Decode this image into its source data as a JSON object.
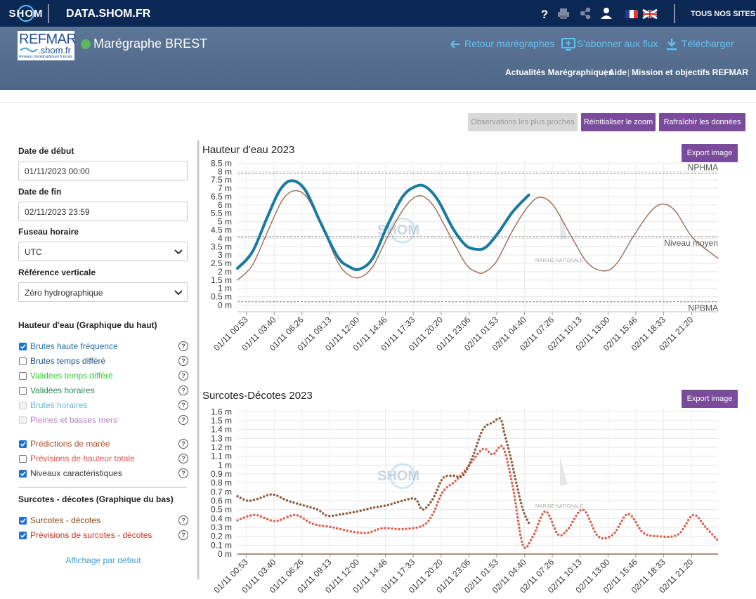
{
  "header": {
    "logo": "SHOM",
    "site": "DATA.SHOM.FR",
    "help": "?",
    "all_sites": "TOUS NOS SITES"
  },
  "subheader": {
    "refmar_logo": "REFMAR",
    "refmar_domain": ".shom.fr",
    "refmar_tagline": "Réseaux marégraphiques français",
    "station_title": "Marégraphe BREST",
    "status_color": "#5cb85c",
    "links": [
      "Retour marégraphes",
      "S'abonner aux flux",
      "Télécharger"
    ],
    "nav": [
      "Actualités Marégraphiques",
      "Aide",
      "Mission et objectifs REFMAR"
    ],
    "nav_separator": "|"
  },
  "toolbar": {
    "buttons": [
      {
        "label": "Observations les plus proches",
        "enabled": false
      },
      {
        "label": "Réinitialiser le zoom",
        "enabled": true
      },
      {
        "label": "Rafraîchir les données",
        "enabled": true
      }
    ]
  },
  "sidebar": {
    "fields": [
      {
        "label": "Date de début",
        "value": "01/11/2023 00:00",
        "kind": "input"
      },
      {
        "label": "Date de fin",
        "value": "02/11/2023 23:59",
        "kind": "input"
      },
      {
        "label": "Fuseau horaire",
        "value": "UTC",
        "kind": "select"
      },
      {
        "label": "Référence verticale",
        "value": "Zéro hydrographique",
        "kind": "select"
      }
    ],
    "help_icon": "?",
    "groups": [
      {
        "title": "Hauteur d'eau (Graphique du haut)",
        "item_sets": [
          [
            {
              "label": "Brutes haute fréquence",
              "checked": true,
              "enabled": true,
              "color": "#1f6fa8"
            },
            {
              "label": "Brutes temps différé",
              "checked": false,
              "enabled": true,
              "color": "#1d4e80"
            },
            {
              "label": "Validées temps différé",
              "checked": false,
              "enabled": true,
              "color": "#33cc33"
            },
            {
              "label": "Validées horaires",
              "checked": false,
              "enabled": true,
              "color": "#2e8b57"
            },
            {
              "label": "Brutes horaires",
              "checked": false,
              "enabled": false,
              "color": "#3a9fbf"
            },
            {
              "label": "Pleines et basses mers",
              "checked": false,
              "enabled": false,
              "color": "#9b59b6"
            }
          ],
          [
            {
              "label": "Prédictions de marée",
              "checked": true,
              "enabled": true,
              "color": "#a0522d"
            },
            {
              "label": "Prévisions de hauteur totale",
              "checked": false,
              "enabled": true,
              "color": "#d9534f"
            },
            {
              "label": "Niveaux caractéristiques",
              "checked": true,
              "enabled": true,
              "color": "#333333"
            }
          ]
        ]
      },
      {
        "title": "Surcotes - décotes (Graphique du bas)",
        "item_sets": [
          [
            {
              "label": "Surcotes - décotes",
              "checked": true,
              "enabled": true,
              "color": "#8b4513"
            },
            {
              "label": "Prévisions de surcotes - décotes",
              "checked": true,
              "enabled": true,
              "color": "#c0392b"
            }
          ]
        ]
      }
    ],
    "default_link": "Affichage par défaut"
  },
  "watermark": {
    "logo": "SHOM",
    "navy": "MARINE NATIONALE"
  },
  "chart_data": [
    {
      "type": "line",
      "title": "Hauteur d'eau 2023",
      "export_button": "Export image",
      "grid": true,
      "xlim": [
        "01/11 00:00",
        "02/11 23:59"
      ],
      "xticks": [
        "01/11 00:53",
        "01/11 03:40",
        "01/11 06:26",
        "01/11 09:13",
        "01/11 12:00",
        "01/11 14:46",
        "01/11 17:33",
        "01/11 20:20",
        "01/11 23:06",
        "02/11 01:53",
        "02/11 04:40",
        "02/11 07:26",
        "02/11 10:13",
        "02/11 13:00",
        "02/11 15:46",
        "02/11 18:33",
        "02/11 21:20"
      ],
      "ylim": [
        -0.4,
        8.6
      ],
      "yticks": [
        {
          "value": 0,
          "label": "0 m"
        },
        {
          "value": 0.5,
          "label": "0.5 m"
        },
        {
          "value": 1,
          "label": "1 m"
        },
        {
          "value": 1.5,
          "label": "1.5 m"
        },
        {
          "value": 2,
          "label": "2 m"
        },
        {
          "value": 2.5,
          "label": "2.5 m"
        },
        {
          "value": 3,
          "label": "3 m"
        },
        {
          "value": 3.5,
          "label": "3.5 m"
        },
        {
          "value": 4,
          "label": "4 m"
        },
        {
          "value": 4.5,
          "label": "4.5 m"
        },
        {
          "value": 5,
          "label": "5 m"
        },
        {
          "value": 5.5,
          "label": "5.5 m"
        },
        {
          "value": 6,
          "label": "6 m"
        },
        {
          "value": 6.5,
          "label": "6.5 m"
        },
        {
          "value": 7,
          "label": "7 m"
        },
        {
          "value": 7.5,
          "label": "7.5 m"
        },
        {
          "value": 8,
          "label": "8 m"
        },
        {
          "value": 8.5,
          "label": "8.5 m"
        }
      ],
      "reference_lines": [
        {
          "label": "NPHMA",
          "value": 7.9
        },
        {
          "label": "Niveau moyen",
          "value": 4.1
        },
        {
          "label": "NPBMA",
          "value": 0.2
        }
      ],
      "series": [
        {
          "color": "#9b6a55",
          "style": "thin",
          "x": [
            "01/11 00:00",
            "01/11 01:30",
            "01/11 03:00",
            "01/11 04:30",
            "01/11 05:45",
            "01/11 07:00",
            "01/11 08:30",
            "01/11 10:00",
            "01/11 11:00",
            "01/11 12:10",
            "01/11 13:30",
            "01/11 15:00",
            "01/11 16:45",
            "01/11 18:10",
            "01/11 19:30",
            "01/11 21:00",
            "01/11 22:45",
            "01/11 23:50",
            "02/11 00:35",
            "02/11 01:50",
            "02/11 03:30",
            "02/11 05:00",
            "02/11 06:10",
            "02/11 07:30",
            "02/11 09:15",
            "02/11 11:00",
            "02/11 12:45",
            "02/11 14:00",
            "02/11 15:30",
            "02/11 17:15",
            "02/11 18:30",
            "02/11 19:45",
            "02/11 21:30",
            "02/11 23:59"
          ],
          "values": [
            1.5,
            2.4,
            4.4,
            6.3,
            6.85,
            6.4,
            4.6,
            2.6,
            1.85,
            1.65,
            2.3,
            4.1,
            5.9,
            6.55,
            6.0,
            4.4,
            2.5,
            2.0,
            1.95,
            2.6,
            4.5,
            5.9,
            6.45,
            6.0,
            4.2,
            2.5,
            2.05,
            2.6,
            4.1,
            5.6,
            6.05,
            5.6,
            4.0,
            2.8
          ]
        },
        {
          "color": "#1a7aa0",
          "style": "thick",
          "x": [
            "01/11 00:00",
            "01/11 01:30",
            "01/11 03:00",
            "01/11 04:15",
            "01/11 05:25",
            "01/11 06:45",
            "01/11 08:15",
            "01/11 10:00",
            "01/11 11:10",
            "01/11 12:10",
            "01/11 13:30",
            "01/11 15:00",
            "01/11 16:30",
            "01/11 17:45",
            "01/11 18:45",
            "01/11 20:00",
            "01/11 21:30",
            "01/11 22:45",
            "01/11 23:45",
            "02/11 00:45",
            "02/11 02:00",
            "02/11 03:30",
            "02/11 05:05"
          ],
          "values": [
            2.2,
            3.2,
            5.3,
            6.9,
            7.45,
            6.9,
            5.0,
            2.9,
            2.3,
            2.15,
            2.8,
            4.8,
            6.5,
            7.1,
            7.1,
            6.3,
            4.6,
            3.6,
            3.35,
            3.45,
            4.3,
            5.6,
            6.6
          ]
        }
      ]
    },
    {
      "type": "dotted",
      "title": "Surcotes-Décotes 2023",
      "export_button": "Export image",
      "grid": true,
      "xlim": [
        "01/11 00:00",
        "02/11 23:59"
      ],
      "xticks": [
        "01/11 00:53",
        "01/11 03:40",
        "01/11 06:26",
        "01/11 09:13",
        "01/11 12:00",
        "01/11 14:46",
        "01/11 17:33",
        "01/11 20:20",
        "01/11 23:06",
        "02/11 01:53",
        "02/11 04:40",
        "02/11 07:26",
        "02/11 10:13",
        "02/11 13:00",
        "02/11 15:46",
        "02/11 18:33",
        "02/11 21:20"
      ],
      "ylim": [
        0,
        1.65
      ],
      "yticks": [
        {
          "value": 0,
          "label": "0 m"
        },
        {
          "value": 0.1,
          "label": "0.1 m"
        },
        {
          "value": 0.2,
          "label": "0.2 m"
        },
        {
          "value": 0.3,
          "label": "0.3 m"
        },
        {
          "value": 0.4,
          "label": "0.4 m"
        },
        {
          "value": 0.5,
          "label": "0.5 m"
        },
        {
          "value": 0.6,
          "label": "0.6 m"
        },
        {
          "value": 0.7,
          "label": "0.7 m"
        },
        {
          "value": 0.8,
          "label": "0.8 m"
        },
        {
          "value": 0.9,
          "label": "0.9 m"
        },
        {
          "value": 1,
          "label": "1 m"
        },
        {
          "value": 1.1,
          "label": "1.1 m"
        },
        {
          "value": 1.2,
          "label": "1.2 m"
        },
        {
          "value": 1.3,
          "label": "1.3 m"
        },
        {
          "value": 1.4,
          "label": "1.4 m"
        },
        {
          "value": 1.5,
          "label": "1.5 m"
        },
        {
          "value": 1.6,
          "label": "1.6 m"
        }
      ],
      "series": [
        {
          "color": "#d9604f",
          "x": [
            "01/11 00:00",
            "01/11 01:45",
            "01/11 03:45",
            "01/11 05:45",
            "01/11 07:30",
            "01/11 09:30",
            "01/11 11:30",
            "01/11 13:00",
            "01/11 14:30",
            "01/11 16:30",
            "01/11 18:30",
            "01/11 19:30",
            "01/11 20:30",
            "01/11 21:45",
            "01/11 23:00",
            "02/11 00:30",
            "02/11 01:30",
            "02/11 02:30",
            "02/11 03:30",
            "02/11 04:30",
            "02/11 05:30",
            "02/11 06:45",
            "02/11 08:00",
            "02/11 09:00",
            "02/11 10:30",
            "02/11 12:00",
            "02/11 13:30",
            "02/11 15:00",
            "02/11 16:30",
            "02/11 18:00",
            "02/11 20:00",
            "02/11 21:30",
            "02/11 22:45",
            "02/11 23:59"
          ],
          "values": [
            0.38,
            0.44,
            0.37,
            0.44,
            0.34,
            0.3,
            0.25,
            0.24,
            0.29,
            0.28,
            0.32,
            0.45,
            0.7,
            0.82,
            0.98,
            1.18,
            1.12,
            1.2,
            0.75,
            0.1,
            0.2,
            0.48,
            0.22,
            0.28,
            0.5,
            0.2,
            0.22,
            0.45,
            0.24,
            0.2,
            0.22,
            0.44,
            0.3,
            0.15
          ]
        },
        {
          "color": "#8b5a3c",
          "x": [
            "01/11 00:00",
            "01/11 01:00",
            "01/11 02:00",
            "01/11 03:30",
            "01/11 05:00",
            "01/11 06:30",
            "01/11 08:00",
            "01/11 09:00",
            "01/11 10:30",
            "01/11 12:00",
            "01/11 13:30",
            "01/11 15:00",
            "01/11 16:30",
            "01/11 17:45",
            "01/11 18:30",
            "01/11 19:30",
            "01/11 20:30",
            "01/11 21:30",
            "01/11 22:30",
            "01/11 23:30",
            "02/11 00:30",
            "02/11 01:30",
            "02/11 02:15",
            "02/11 02:40",
            "02/11 03:15",
            "02/11 03:50",
            "02/11 04:30",
            "02/11 05:05"
          ],
          "values": [
            0.65,
            0.6,
            0.62,
            0.67,
            0.6,
            0.55,
            0.5,
            0.43,
            0.45,
            0.48,
            0.52,
            0.55,
            0.6,
            0.62,
            0.5,
            0.62,
            0.85,
            0.88,
            0.88,
            1.1,
            1.4,
            1.48,
            1.52,
            1.35,
            1.1,
            0.8,
            0.5,
            0.35
          ]
        }
      ]
    }
  ]
}
